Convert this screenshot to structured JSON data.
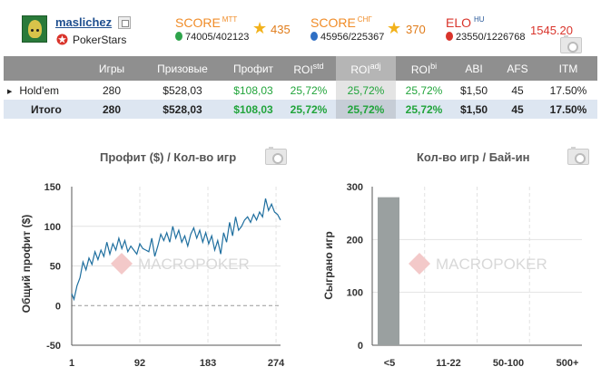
{
  "player": {
    "username": "maslichez",
    "site": "PokerStars"
  },
  "scores": {
    "mtt": {
      "title": "SCORE",
      "tag": "MTT",
      "rank": "74005/402123",
      "value": "435"
    },
    "cis": {
      "title": "SCORE",
      "tag": "СНГ",
      "rank": "45956/225367",
      "value": "370"
    },
    "elo": {
      "title": "ELO",
      "tag": "HU",
      "rank": "23550/1226768",
      "value": "1545.20"
    }
  },
  "table": {
    "headers": [
      "",
      "Игры",
      "Призовые",
      "Профит",
      "ROI",
      "ROI",
      "ROI",
      "ABI",
      "AFS",
      "ITM"
    ],
    "roi_sups": [
      "std",
      "adj",
      "bi"
    ],
    "rows": [
      {
        "label": "Hold'em",
        "games": "280",
        "prize": "$528,03",
        "profit": "$108,03",
        "roi_std": "25,72%",
        "roi_adj": "25,72%",
        "roi_bi": "25,72%",
        "abi": "$1,50",
        "afs": "45",
        "itm": "17.50%"
      }
    ],
    "total": {
      "label": "Итого",
      "games": "280",
      "prize": "$528,03",
      "profit": "$108,03",
      "roi_std": "25,72%",
      "roi_adj": "25,72%",
      "roi_bi": "25,72%",
      "abi": "$1,50",
      "afs": "45",
      "itm": "17.50%"
    }
  },
  "colors": {
    "header_bg": "#8f8f8f",
    "positive": "#21a43b",
    "score_orange": "#f08c28",
    "elo_red": "#d9342b",
    "line": "#1f6f9f",
    "bar": "#9aa0a0"
  },
  "watermark": "MACROPOKER",
  "chart_data": [
    {
      "type": "line",
      "title": "Профит ($) / Кол-во игр",
      "xlabel": "",
      "ylabel": "Общий профит ($)",
      "xlim": [
        1,
        280
      ],
      "ylim": [
        -50,
        150
      ],
      "x_ticks": [
        "1",
        "92",
        "183",
        "274"
      ],
      "y_ticks": [
        "150",
        "100",
        "50",
        "0",
        "-50"
      ],
      "grid": true,
      "series": [
        {
          "x": [
            1,
            4,
            8,
            12,
            16,
            20,
            24,
            28,
            32,
            36,
            40,
            44,
            48,
            52,
            56,
            60,
            64,
            68,
            72,
            76,
            80,
            84,
            88,
            92,
            96,
            100,
            104,
            108,
            112,
            116,
            120,
            124,
            128,
            132,
            136,
            140,
            144,
            148,
            152,
            156,
            160,
            164,
            168,
            172,
            176,
            180,
            184,
            188,
            192,
            196,
            200,
            204,
            208,
            212,
            216,
            220,
            224,
            228,
            232,
            236,
            240,
            244,
            248,
            252,
            256,
            260,
            264,
            268,
            272,
            276,
            280
          ],
          "y": [
            15,
            8,
            25,
            35,
            55,
            45,
            60,
            52,
            68,
            58,
            70,
            62,
            80,
            65,
            78,
            70,
            85,
            72,
            82,
            68,
            75,
            70,
            65,
            78,
            72,
            70,
            68,
            85,
            62,
            75,
            90,
            82,
            92,
            80,
            100,
            85,
            95,
            80,
            88,
            75,
            90,
            98,
            85,
            95,
            80,
            92,
            78,
            88,
            70,
            82,
            65,
            92,
            80,
            105,
            88,
            112,
            95,
            100,
            108,
            112,
            105,
            115,
            108,
            118,
            112,
            135,
            120,
            128,
            118,
            115,
            108
          ]
        }
      ]
    },
    {
      "type": "bar",
      "title": "Кол-во игр / Бай-ин",
      "xlabel": "",
      "ylabel": "Сыграно игр",
      "ylim": [
        0,
        300
      ],
      "y_ticks": [
        "300",
        "200",
        "100",
        "0"
      ],
      "categories": [
        "<5",
        "11-22",
        "50-100",
        "500+"
      ],
      "values": [
        280,
        0,
        0,
        0
      ],
      "grid": true
    }
  ]
}
